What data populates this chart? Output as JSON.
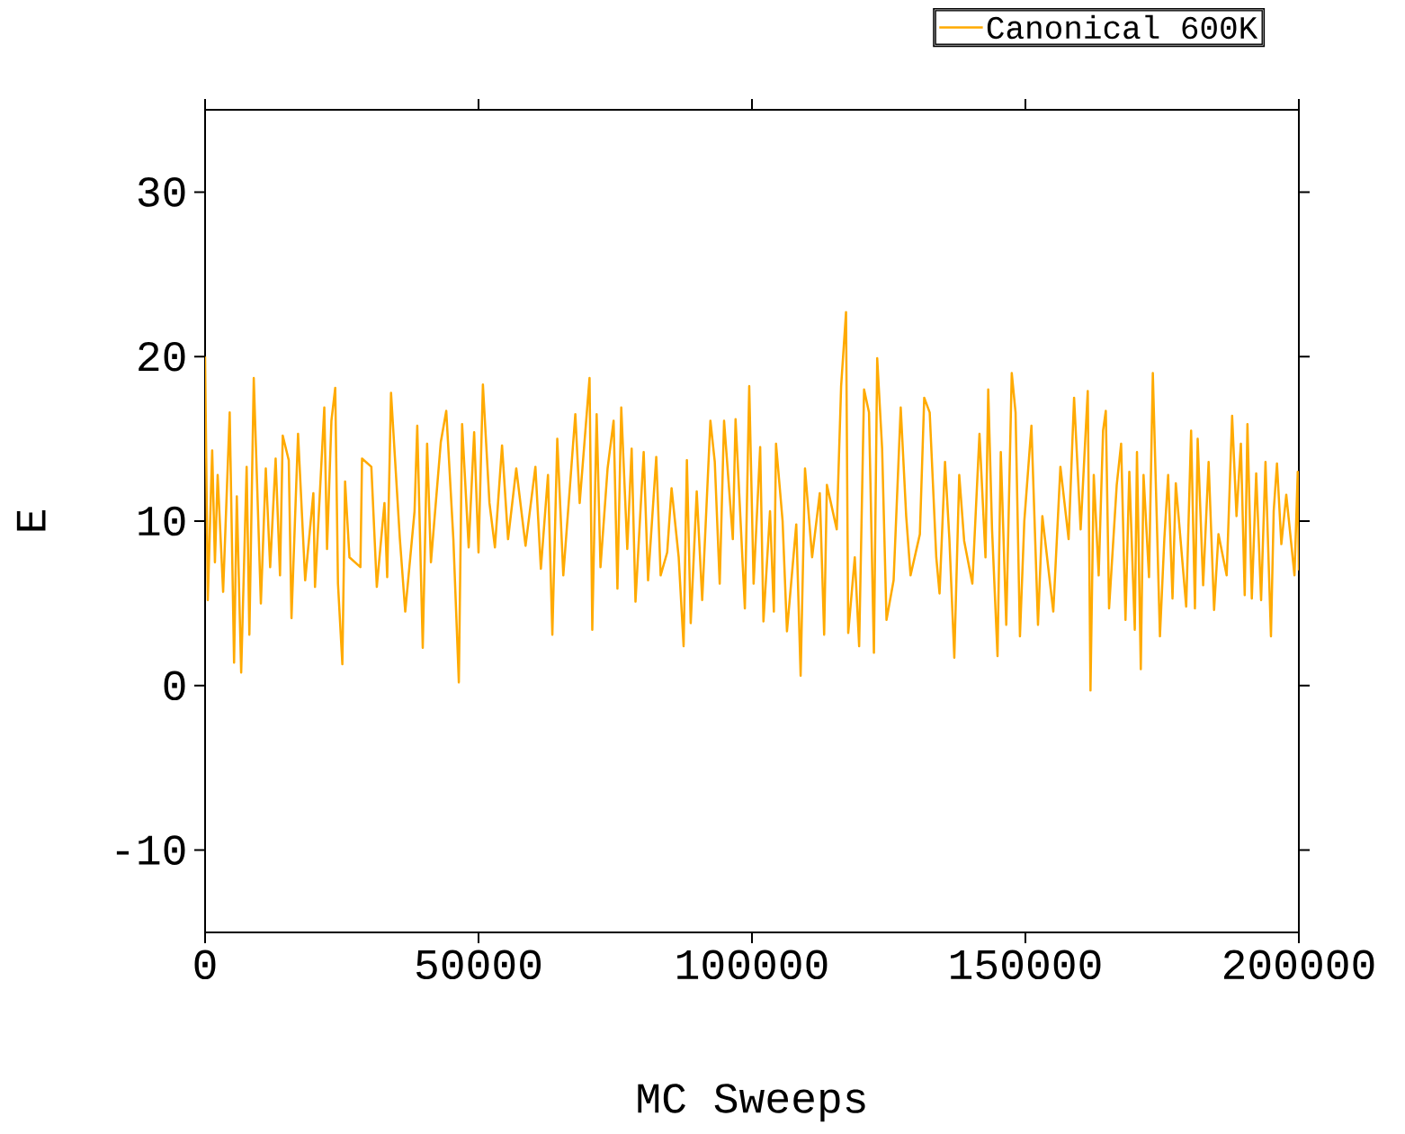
{
  "chart_data": {
    "type": "line",
    "xlabel": "MC Sweeps",
    "ylabel": "E",
    "xlim": [
      0,
      200000
    ],
    "ylim": [
      -15,
      35
    ],
    "xticks": [
      0,
      50000,
      100000,
      150000,
      200000
    ],
    "yticks": [
      -10,
      0,
      10,
      20,
      30
    ],
    "legend": "top right",
    "marker": "none",
    "line_style": "solid",
    "x": [
      0,
      500,
      1300,
      1800,
      2300,
      3300,
      4500,
      5300,
      5800,
      6600,
      7600,
      8100,
      8900,
      10200,
      11100,
      11900,
      12900,
      13700,
      14200,
      15300,
      15800,
      17000,
      18300,
      19800,
      20100,
      21800,
      22300,
      23100,
      23800,
      24300,
      25100,
      25600,
      26400,
      28400,
      28700,
      30400,
      31400,
      32800,
      33300,
      34000,
      35600,
      36600,
      38300,
      38800,
      39800,
      40600,
      41300,
      43100,
      44100,
      45400,
      46400,
      47000,
      48200,
      49200,
      50000,
      50800,
      52000,
      53000,
      54300,
      55400,
      56900,
      58600,
      60400,
      61400,
      62700,
      63500,
      64400,
      65500,
      67700,
      68500,
      70300,
      70800,
      71600,
      72300,
      73600,
      74700,
      75400,
      76100,
      77200,
      78000,
      78700,
      80200,
      81000,
      82500,
      83300,
      84500,
      85300,
      86600,
      87500,
      88100,
      88800,
      89900,
      90900,
      92400,
      93200,
      94100,
      94900,
      96500,
      97000,
      98700,
      99500,
      100300,
      101500,
      102100,
      103300,
      104000,
      104400,
      105600,
      106400,
      108100,
      108900,
      109700,
      111000,
      112400,
      113200,
      113700,
      115500,
      116300,
      117200,
      117600,
      118800,
      119600,
      120500,
      121400,
      122300,
      122900,
      123800,
      124600,
      125900,
      127200,
      128200,
      129000,
      130700,
      131500,
      132500,
      133700,
      134300,
      135300,
      136100,
      137000,
      137900,
      138800,
      140300,
      141600,
      142700,
      143200,
      143900,
      144900,
      145500,
      146500,
      147500,
      148200,
      149000,
      149800,
      151100,
      152300,
      153100,
      155100,
      156400,
      157900,
      158900,
      160100,
      161400,
      161900,
      162500,
      163400,
      164200,
      164700,
      165300,
      166700,
      167500,
      168300,
      169000,
      170000,
      170400,
      171100,
      171600,
      172600,
      173300,
      174600,
      175400,
      176100,
      176900,
      177500,
      179400,
      180300,
      181000,
      181500,
      182500,
      183500,
      184500,
      185300,
      186800,
      187800,
      188600,
      189400,
      190100,
      190600,
      191400,
      192200,
      193100,
      193900,
      194900,
      195400,
      196000,
      196800,
      197700,
      199200,
      199800,
      200000
    ],
    "series": [
      {
        "name": "Canonical 600K",
        "color": "#ffaa00",
        "values": [
          20,
          5.2,
          14.3,
          7.5,
          12.8,
          5.7,
          16.6,
          1.4,
          11.5,
          0.8,
          13.3,
          3.1,
          18.7,
          5,
          13.2,
          7.2,
          13.8,
          6.7,
          15.2,
          13.7,
          4.1,
          15.3,
          6.4,
          11.7,
          6,
          16.9,
          8.3,
          16.1,
          18.1,
          6.2,
          1.3,
          12.4,
          7.8,
          7.2,
          13.8,
          13.3,
          6,
          11.1,
          6.6,
          17.8,
          9,
          4.5,
          10.6,
          15.8,
          2.3,
          14.7,
          7.5,
          14.8,
          16.7,
          8.9,
          0.2,
          15.9,
          8.4,
          15.4,
          8.1,
          18.3,
          11.1,
          8.4,
          14.6,
          8.9,
          13.2,
          8.5,
          13.3,
          7.1,
          12.8,
          3.1,
          15,
          6.7,
          16.5,
          11.1,
          18.7,
          3.4,
          16.5,
          7.2,
          13.2,
          16.1,
          5.9,
          16.9,
          8.3,
          14.4,
          5.1,
          14.2,
          6.4,
          13.9,
          6.7,
          8.1,
          12,
          7.8,
          2.4,
          13.7,
          3.8,
          11.8,
          5.2,
          16.1,
          13.6,
          6.2,
          16.1,
          8.9,
          16.2,
          4.7,
          18.2,
          6.2,
          14.5,
          3.9,
          10.6,
          4.5,
          14.7,
          10,
          3.3,
          9.8,
          0.6,
          13.2,
          7.8,
          11.7,
          3.1,
          12.2,
          9.5,
          18.2,
          22.7,
          3.2,
          7.8,
          2.4,
          18,
          16.6,
          2,
          19.9,
          14.4,
          4,
          6.4,
          16.9,
          10.3,
          6.7,
          9.2,
          17.5,
          16.6,
          7.8,
          5.6,
          13.6,
          8.9,
          1.7,
          12.8,
          8.8,
          6.2,
          15.3,
          7.8,
          18,
          9.5,
          1.8,
          14.2,
          3.7,
          19,
          16.6,
          3,
          10,
          15.8,
          3.7,
          10.3,
          4.5,
          13.3,
          8.9,
          17.5,
          9.5,
          17.9,
          -0.3,
          12.8,
          6.7,
          15.5,
          16.7,
          4.7,
          12.2,
          14.7,
          4,
          13,
          3.4,
          14.2,
          1,
          12.8,
          6.6,
          19,
          3,
          8.9,
          12.8,
          5.3,
          12.3,
          4.8,
          15.5,
          4.7,
          15,
          6.1,
          13.6,
          4.6,
          9.2,
          6.7,
          16.4,
          10.3,
          14.7,
          5.5,
          15.9,
          5.3,
          12.9,
          5.2,
          13.6,
          3,
          10.6,
          13.5,
          8.6,
          11.6,
          6.7,
          13,
          7
        ]
      }
    ]
  }
}
